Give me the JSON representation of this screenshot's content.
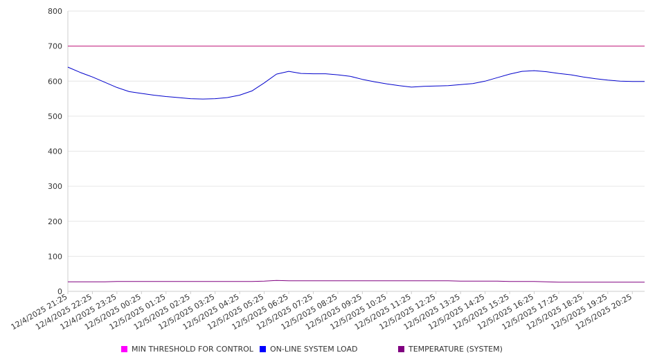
{
  "chart_data": {
    "type": "line",
    "title": "",
    "xlabel": "",
    "ylabel": "",
    "ylim": [
      0,
      800
    ],
    "yticks": [
      0,
      100,
      200,
      300,
      400,
      500,
      600,
      700,
      800
    ],
    "grid": true,
    "legend_position": "bottom",
    "x_tick_labels": [
      "12/4/2025 21:25",
      "12/4/2025 22:25",
      "12/4/2025 23:25",
      "12/5/2025 00:25",
      "12/5/2025 01:25",
      "12/5/2025 02:25",
      "12/5/2025 03:25",
      "12/5/2025 04:25",
      "12/5/2025 05:25",
      "12/5/2025 06:25",
      "12/5/2025 07:25",
      "12/5/2025 08:25",
      "12/5/2025 09:25",
      "12/5/2025 10:25",
      "12/5/2025 11:25",
      "12/5/2025 12:25",
      "12/5/2025 13:25",
      "12/5/2025 14:25",
      "12/5/2025 15:25",
      "12/5/2025 16:25",
      "12/5/2025 17:25",
      "12/5/2025 18:25",
      "12/5/2025 19:25",
      "12/5/2025 20:25"
    ],
    "x": [
      "12/4/2025 21:25",
      "12/4/2025 21:55",
      "12/4/2025 22:25",
      "12/4/2025 22:55",
      "12/4/2025 23:25",
      "12/4/2025 23:55",
      "12/5/2025 00:25",
      "12/5/2025 00:55",
      "12/5/2025 01:25",
      "12/5/2025 01:55",
      "12/5/2025 02:25",
      "12/5/2025 02:55",
      "12/5/2025 03:25",
      "12/5/2025 03:55",
      "12/5/2025 04:25",
      "12/5/2025 04:55",
      "12/5/2025 05:25",
      "12/5/2025 05:55",
      "12/5/2025 06:25",
      "12/5/2025 06:55",
      "12/5/2025 07:25",
      "12/5/2025 07:55",
      "12/5/2025 08:25",
      "12/5/2025 08:55",
      "12/5/2025 09:25",
      "12/5/2025 09:55",
      "12/5/2025 10:25",
      "12/5/2025 10:55",
      "12/5/2025 11:25",
      "12/5/2025 11:55",
      "12/5/2025 12:25",
      "12/5/2025 12:55",
      "12/5/2025 13:25",
      "12/5/2025 13:55",
      "12/5/2025 14:25",
      "12/5/2025 14:55",
      "12/5/2025 15:25",
      "12/5/2025 15:55",
      "12/5/2025 16:25",
      "12/5/2025 16:55",
      "12/5/2025 17:25",
      "12/5/2025 17:55",
      "12/5/2025 18:25",
      "12/5/2025 18:55",
      "12/5/2025 19:25",
      "12/5/2025 19:55",
      "12/5/2025 20:25",
      "12/5/2025 20:55"
    ],
    "series": [
      {
        "name": "MIN THRESHOLD FOR CONTROL",
        "color": "#c2187a",
        "legend_color": "#ff00ff",
        "values": [
          700,
          700,
          700,
          700,
          700,
          700,
          700,
          700,
          700,
          700,
          700,
          700,
          700,
          700,
          700,
          700,
          700,
          700,
          700,
          700,
          700,
          700,
          700,
          700,
          700,
          700,
          700,
          700,
          700,
          700,
          700,
          700,
          700,
          700,
          700,
          700,
          700,
          700,
          700,
          700,
          700,
          700,
          700,
          700,
          700,
          700,
          700,
          700
        ]
      },
      {
        "name": "ON-LINE SYSTEM LOAD",
        "color": "#0000cc",
        "legend_color": "#0000ff",
        "values": [
          640,
          625,
          612,
          597,
          582,
          570,
          565,
          560,
          556,
          553,
          550,
          549,
          550,
          553,
          560,
          572,
          595,
          620,
          628,
          622,
          621,
          621,
          618,
          614,
          605,
          598,
          592,
          587,
          583,
          585,
          586,
          587,
          590,
          593,
          600,
          610,
          620,
          628,
          630,
          627,
          622,
          618,
          612,
          607,
          603,
          600,
          599,
          599
        ]
      },
      {
        "name": "TEMPERATURE (SYSTEM)",
        "color": "#800080",
        "legend_color": "#800080",
        "values": [
          27,
          27,
          27,
          27,
          28,
          28,
          28,
          28,
          28,
          28,
          28,
          28,
          28,
          28,
          28,
          28,
          29,
          31,
          30,
          30,
          30,
          30,
          30,
          30,
          30,
          30,
          30,
          30,
          30,
          30,
          30,
          30,
          29,
          29,
          29,
          29,
          28,
          28,
          28,
          27,
          26,
          26,
          26,
          26,
          26,
          26,
          26,
          26
        ]
      }
    ]
  }
}
